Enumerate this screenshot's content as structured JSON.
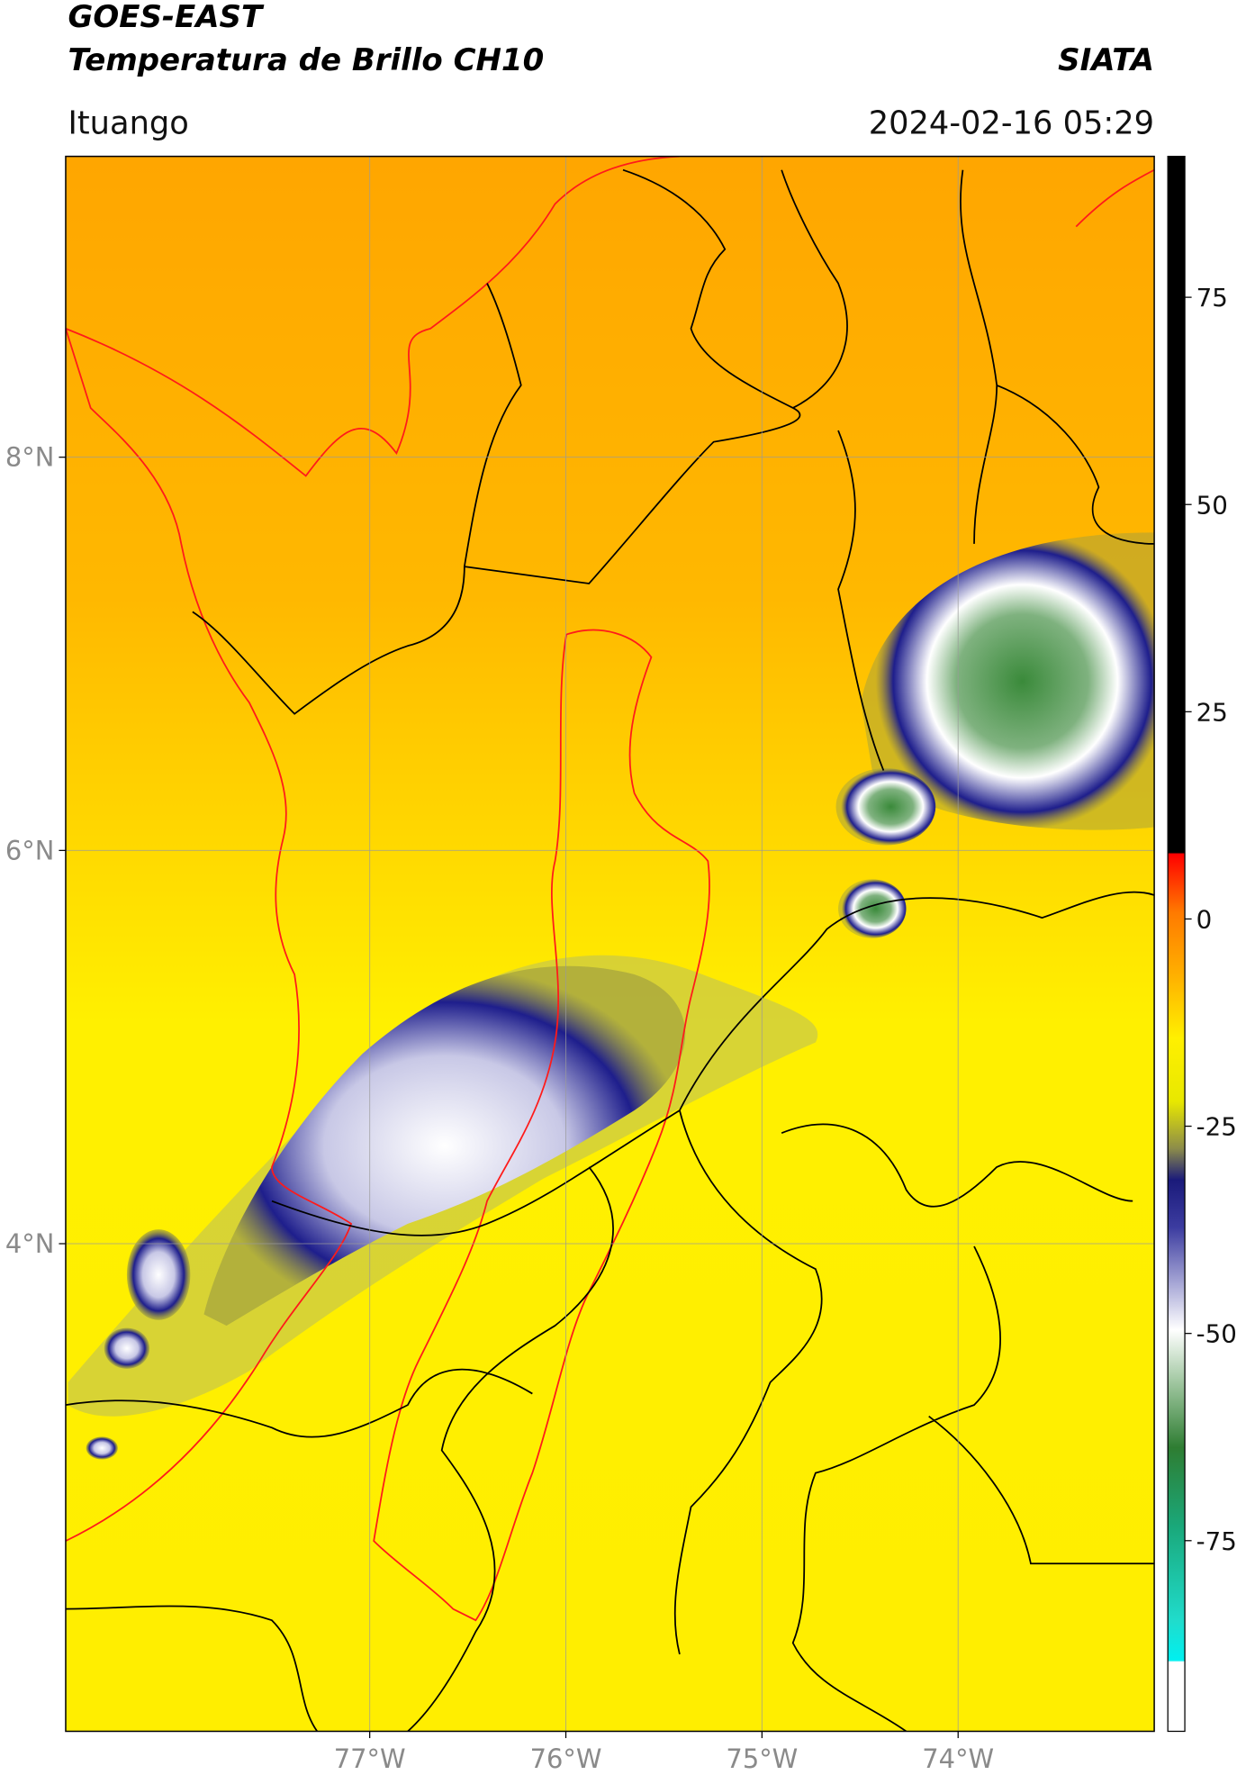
{
  "header": {
    "line1": "GOES-EAST",
    "line2": "Temperatura de Brillo CH10",
    "org": "SIATA",
    "location": "Ituango",
    "datetime": "2024-02-16 05:29"
  },
  "map": {
    "lonlim": [
      -78.55,
      -73
    ],
    "latlim": [
      1.52,
      9.53
    ],
    "lat_ticks": [
      {
        "value": 8,
        "label": "8°N"
      },
      {
        "value": 6,
        "label": "6°N"
      },
      {
        "value": 4,
        "label": "4°N"
      }
    ],
    "lon_ticks": [
      {
        "value": -77,
        "label": "77°W"
      },
      {
        "value": -76,
        "label": "76°W"
      },
      {
        "value": -75,
        "label": "75°W"
      },
      {
        "value": -74,
        "label": "74°W"
      }
    ]
  },
  "colorbar": {
    "lim": [
      -98,
      92
    ],
    "ticks": [
      75,
      50,
      25,
      0,
      -25,
      -50,
      -75
    ]
  }
}
